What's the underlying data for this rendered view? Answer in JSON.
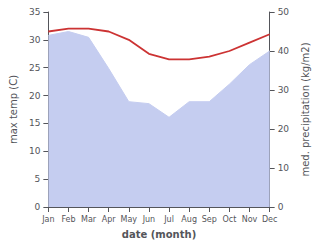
{
  "chart_data": {
    "type": "line",
    "categories": [
      "Jan",
      "Feb",
      "Mar",
      "Apr",
      "May",
      "Jun",
      "Jul",
      "Aug",
      "Sep",
      "Oct",
      "Nov",
      "Dec"
    ],
    "series": [
      {
        "type": "area",
        "color": "#c5cdf0",
        "axis": "y2",
        "values": [
          44.0,
          45.0,
          43.5,
          35.5,
          27.0,
          26.5,
          23.0,
          27.0,
          27.0,
          31.5,
          36.5,
          40.0
        ]
      },
      {
        "type": "line",
        "color": "#cc3333",
        "values": [
          31.5,
          32.0,
          32.0,
          31.5,
          30.0,
          27.5,
          26.5,
          26.5,
          27.0,
          28.0,
          29.5,
          31.0
        ]
      }
    ],
    "xlabel": "date (month)",
    "ylabel": "max temp (C)",
    "y2label": "med. precipitation (kg/m2)",
    "ylim": [
      0,
      35
    ],
    "yticks": [
      0,
      5,
      10,
      15,
      20,
      25,
      30,
      35
    ],
    "y2lim": [
      0,
      50
    ],
    "y2ticks": [
      0,
      10,
      20,
      30,
      40,
      50
    ],
    "grid": false
  }
}
